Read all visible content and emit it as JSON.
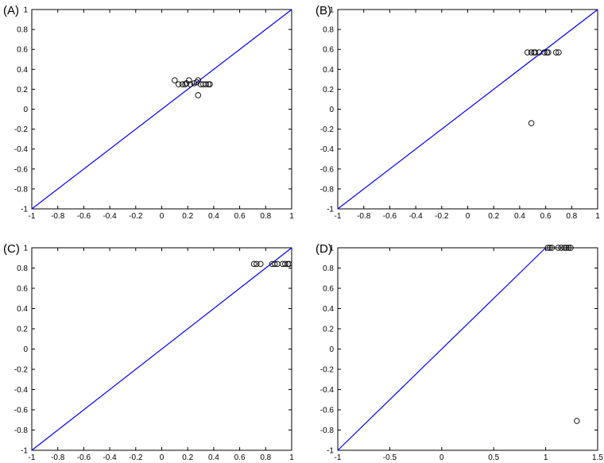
{
  "chart_data": [
    {
      "type": "scatter",
      "panel_label": "(A)",
      "xlim": [
        -1,
        1
      ],
      "ylim": [
        -1,
        1
      ],
      "xticks": [
        "-1",
        "-0.8",
        "-0.6",
        "-0.4",
        "-0.2",
        "0",
        "0.2",
        "0.4",
        "0.6",
        "0.8",
        "1"
      ],
      "yticks": [
        "-1",
        "-0.8",
        "-0.6",
        "-0.4",
        "-0.2",
        "0",
        "0.2",
        "0.4",
        "0.6",
        "0.8",
        "1"
      ],
      "xtick_values": [
        -1,
        -0.8,
        -0.6,
        -0.4,
        -0.2,
        0,
        0.2,
        0.4,
        0.6,
        0.8,
        1
      ],
      "ytick_values": [
        -1,
        -0.8,
        -0.6,
        -0.4,
        -0.2,
        0,
        0.2,
        0.4,
        0.6,
        0.8,
        1
      ],
      "grid": false,
      "line": {
        "x": [
          -1,
          1
        ],
        "y": [
          -1,
          1
        ],
        "color": "#0000ff"
      },
      "points": {
        "marker": "circle-open",
        "x": [
          0.1,
          0.13,
          0.16,
          0.18,
          0.19,
          0.21,
          0.22,
          0.25,
          0.27,
          0.28,
          0.3,
          0.32,
          0.34,
          0.36,
          0.37,
          0.28
        ],
        "y": [
          0.29,
          0.25,
          0.25,
          0.25,
          0.26,
          0.29,
          0.25,
          0.26,
          0.27,
          0.29,
          0.25,
          0.25,
          0.25,
          0.25,
          0.25,
          0.14
        ]
      }
    },
    {
      "type": "scatter",
      "panel_label": "(B)",
      "xlim": [
        -1,
        1
      ],
      "ylim": [
        -1,
        1
      ],
      "xticks": [
        "-1",
        "-0.8",
        "-0.6",
        "-0.4",
        "-0.2",
        "0",
        "0.2",
        "0.4",
        "0.6",
        "0.8",
        "1"
      ],
      "yticks": [
        "-1",
        "-0.8",
        "-0.6",
        "-0.4",
        "-0.2",
        "0",
        "0.2",
        "0.4",
        "0.6",
        "0.8",
        "1"
      ],
      "xtick_values": [
        -1,
        -0.8,
        -0.6,
        -0.4,
        -0.2,
        0,
        0.2,
        0.4,
        0.6,
        0.8,
        1
      ],
      "ytick_values": [
        -1,
        -0.8,
        -0.6,
        -0.4,
        -0.2,
        0,
        0.2,
        0.4,
        0.6,
        0.8,
        1
      ],
      "grid": false,
      "line": {
        "x": [
          -1,
          1
        ],
        "y": [
          -1,
          1
        ],
        "color": "#0000ff"
      },
      "points": {
        "marker": "circle-open",
        "x": [
          0.46,
          0.49,
          0.51,
          0.52,
          0.55,
          0.59,
          0.61,
          0.62,
          0.68,
          0.7,
          0.49
        ],
        "y": [
          0.57,
          0.57,
          0.57,
          0.57,
          0.57,
          0.57,
          0.57,
          0.57,
          0.57,
          0.57,
          -0.14
        ]
      }
    },
    {
      "type": "scatter",
      "panel_label": "(C)",
      "xlim": [
        -1,
        1
      ],
      "ylim": [
        -1,
        1
      ],
      "xticks": [
        "-1",
        "-0.8",
        "-0.6",
        "-0.4",
        "-0.2",
        "0",
        "0.2",
        "0.4",
        "0.6",
        "0.8",
        "1"
      ],
      "yticks": [
        "-1",
        "-0.8",
        "-0.6",
        "-0.4",
        "-0.2",
        "0",
        "0.2",
        "0.4",
        "0.6",
        "0.8",
        "1"
      ],
      "xtick_values": [
        -1,
        -0.8,
        -0.6,
        -0.4,
        -0.2,
        0,
        0.2,
        0.4,
        0.6,
        0.8,
        1
      ],
      "ytick_values": [
        -1,
        -0.8,
        -0.6,
        -0.4,
        -0.2,
        0,
        0.2,
        0.4,
        0.6,
        0.8,
        1
      ],
      "grid": false,
      "line": {
        "x": [
          -1,
          1
        ],
        "y": [
          -1,
          1
        ],
        "color": "#0000ff"
      },
      "points": {
        "marker": "circle-open",
        "x": [
          0.71,
          0.73,
          0.76,
          0.85,
          0.87,
          0.89,
          0.93,
          0.95,
          0.97,
          0.98
        ],
        "y": [
          0.84,
          0.84,
          0.84,
          0.84,
          0.84,
          0.84,
          0.84,
          0.84,
          0.84,
          0.84
        ]
      }
    },
    {
      "type": "scatter",
      "panel_label": "(D)",
      "xlim": [
        -1,
        1.5
      ],
      "ylim": [
        -1,
        1
      ],
      "xticks": [
        "-1",
        "-0.5",
        "0",
        "0.5",
        "1",
        "1.5"
      ],
      "yticks": [
        "-1",
        "-0.8",
        "-0.6",
        "-0.4",
        "-0.2",
        "0",
        "0.2",
        "0.4",
        "0.6",
        "0.8",
        "1"
      ],
      "xtick_values": [
        -1,
        -0.5,
        0,
        0.5,
        1,
        1.5
      ],
      "ytick_values": [
        -1,
        -0.8,
        -0.6,
        -0.4,
        -0.2,
        0,
        0.2,
        0.4,
        0.6,
        0.8,
        1
      ],
      "grid": false,
      "line": {
        "x": [
          -1,
          1
        ],
        "y": [
          -1,
          1
        ],
        "color": "#0000ff"
      },
      "points": {
        "marker": "circle-open",
        "x": [
          1.02,
          1.04,
          1.06,
          1.12,
          1.15,
          1.18,
          1.2,
          1.22,
          1.24,
          1.3
        ],
        "y": [
          1.0,
          1.0,
          1.0,
          1.0,
          1.0,
          1.0,
          1.0,
          1.0,
          1.0,
          -0.71
        ]
      }
    }
  ]
}
